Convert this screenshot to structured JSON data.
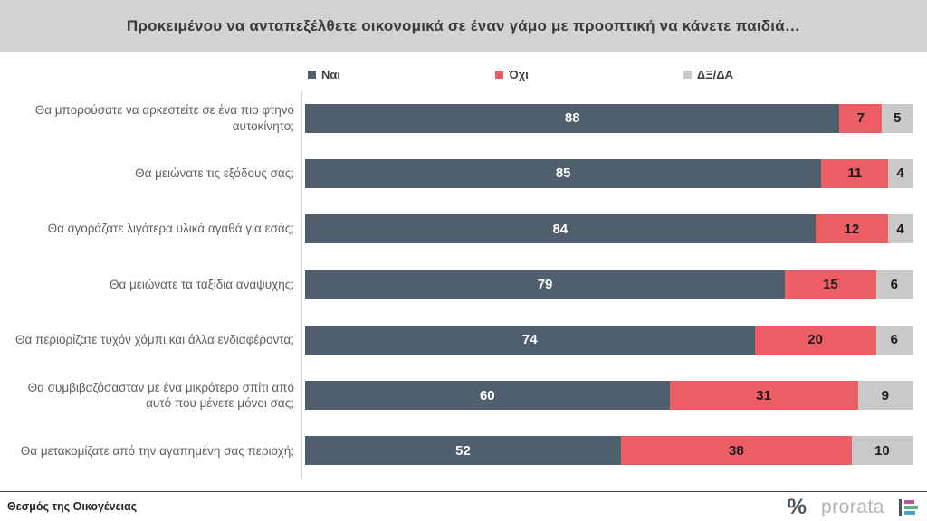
{
  "title": "Προκειμένου να ανταπεξέλθετε οικονομικά σε έναν γάμο με προοπτική να κάνετε παιδιά…",
  "colors": {
    "title_bar_bg": "#d2d2d2",
    "yes": "#4F5F6E",
    "no": "#ED5E64",
    "dk": "#C9C9C9",
    "axis_line": "#d9d9d9",
    "value_on_yes": "#ffffff",
    "value_on_other": "#1a1a1a"
  },
  "chart_data": {
    "type": "bar",
    "orientation": "horizontal",
    "stacked": true,
    "xlim": [
      0,
      100
    ],
    "grid": false,
    "legend_position": "top",
    "value_labels": true,
    "title": "Προκειμένου να ανταπεξέλθετε οικονομικά σε έναν γάμο με προοπτική να κάνετε παιδιά…",
    "categories": [
      "Θα μπορούσατε να αρκεστείτε σε ένα πιο φτηνό αυτοκίνητο;",
      "Θα μειώνατε τις εξόδους σας;",
      "Θα αγοράζατε λιγότερα υλικά αγαθά για εσάς;",
      "Θα μειώνατε τα ταξίδια αναψυχής;",
      "Θα περιορίζατε τυχόν χόμπι και άλλα ενδιαφέροντα;",
      "Θα συμβιβαζόσασταν με ένα μικρότερο σπίτι από αυτό που μένετε μόνοι σας;",
      "Θα μετακομίζατε από την αγαπημένη σας περιοχή;"
    ],
    "series": [
      {
        "name": "Ναι",
        "color": "#4F5F6E",
        "values": [
          88,
          85,
          84,
          79,
          74,
          60,
          52
        ]
      },
      {
        "name": "Όχι",
        "color": "#ED5E64",
        "values": [
          7,
          11,
          12,
          15,
          20,
          31,
          38
        ]
      },
      {
        "name": "ΔΞ/ΔΑ",
        "color": "#C9C9C9",
        "values": [
          5,
          4,
          4,
          6,
          6,
          9,
          10
        ]
      }
    ]
  },
  "footer": {
    "source_label": "Θεσμός της Οικογένειας",
    "brand": {
      "percent_icon": "%",
      "name": "prorata",
      "mark_bar_colors": [
        "#c8509b",
        "#56b87f",
        "#48a3c9"
      ],
      "mark_bar_widths": [
        11,
        15,
        12
      ]
    }
  }
}
